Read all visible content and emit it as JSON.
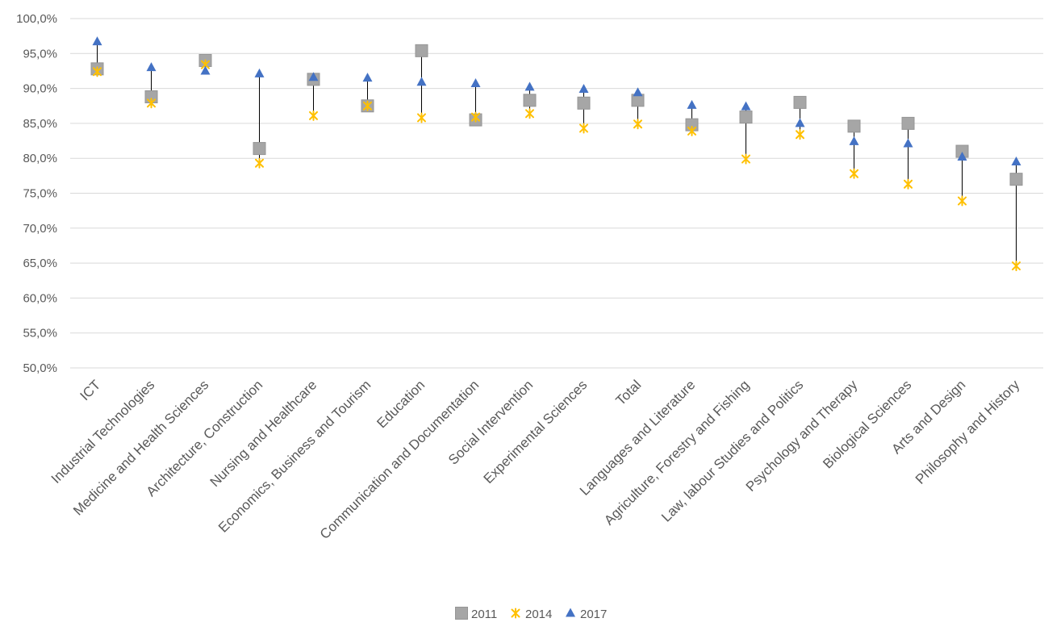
{
  "chart_data": {
    "type": "scatter",
    "title": "",
    "xlabel": "",
    "ylabel": "",
    "ylim": [
      50,
      100
    ],
    "ytick_step": 5,
    "y_tick_labels": [
      "50,0%",
      "55,0%",
      "60,0%",
      "65,0%",
      "70,0%",
      "75,0%",
      "80,0%",
      "85,0%",
      "90,0%",
      "95,0%",
      "100,0%"
    ],
    "grid": true,
    "legend_position": "bottom-center",
    "categories": [
      "ICT",
      "Industrial Technologies",
      "Medicine and Health Sciences",
      "Architecture, Construction",
      "Nursing and Healthcare",
      "Economics, Business and Tourism",
      "Education",
      "Communication and Documentation",
      "Social Intervention",
      "Experimental Sciences",
      "Total",
      "Languages and Literature",
      "Agriculture, Forestry and Fishing",
      "Law, labour Studies and Politics",
      "Psychology and Therapy",
      "Biological Sciences",
      "Arts and Design",
      "Philosophy and History"
    ],
    "series": [
      {
        "name": "2011",
        "marker": "square",
        "color": "#A6A6A6",
        "values": [
          92.8,
          88.8,
          94.0,
          81.4,
          91.3,
          87.5,
          95.4,
          85.5,
          88.3,
          87.9,
          88.3,
          84.8,
          85.9,
          88.0,
          84.6,
          85.0,
          81.0,
          77.0
        ]
      },
      {
        "name": "2014",
        "marker": "x",
        "color": "#FFC000",
        "values": [
          92.4,
          87.9,
          93.4,
          79.3,
          86.1,
          87.5,
          85.8,
          85.9,
          86.4,
          84.3,
          84.9,
          83.9,
          79.9,
          83.4,
          77.8,
          76.3,
          73.9,
          64.6
        ]
      },
      {
        "name": "2017",
        "marker": "triangle",
        "color": "#4472C4",
        "values": [
          96.7,
          93.0,
          92.5,
          92.1,
          91.6,
          91.5,
          90.9,
          90.7,
          90.2,
          89.9,
          89.4,
          87.6,
          87.4,
          85.0,
          82.4,
          82.1,
          80.2,
          79.5
        ]
      }
    ]
  }
}
